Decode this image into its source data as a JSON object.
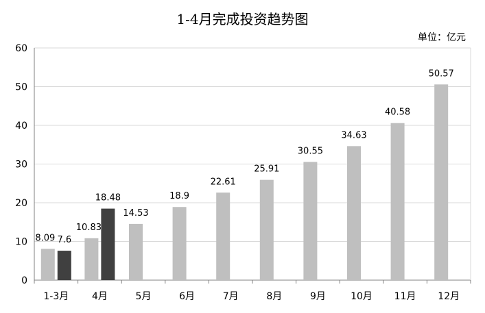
{
  "chart_data": {
    "type": "bar",
    "title": "1-4月完成投资趋势图",
    "unit_label": "单位：亿元",
    "ylim": [
      0,
      60
    ],
    "yticks": [
      0,
      10,
      20,
      30,
      40,
      50,
      60
    ],
    "grid": true,
    "categories": [
      "1-3月",
      "4月",
      "5月",
      "6月",
      "7月",
      "8月",
      "9月",
      "10月",
      "11月",
      "12月"
    ],
    "series": [
      {
        "values": [
          8.09,
          10.83,
          14.53,
          18.9,
          22.61,
          25.91,
          30.55,
          34.63,
          40.58,
          50.57
        ],
        "color": "#bfbfbf"
      },
      {
        "values": [
          7.6,
          18.48,
          null,
          null,
          null,
          null,
          null,
          null,
          null,
          null
        ],
        "color": "#404040"
      }
    ],
    "data_labels": [
      [
        "8.09",
        "10.83",
        "14.53",
        "18.9",
        "22.61",
        "25.91",
        "30.55",
        "34.63",
        "40.58",
        "50.57"
      ],
      [
        "7.6",
        "18.48",
        "",
        "",
        "",
        "",
        "",
        "",
        "",
        ""
      ]
    ]
  }
}
